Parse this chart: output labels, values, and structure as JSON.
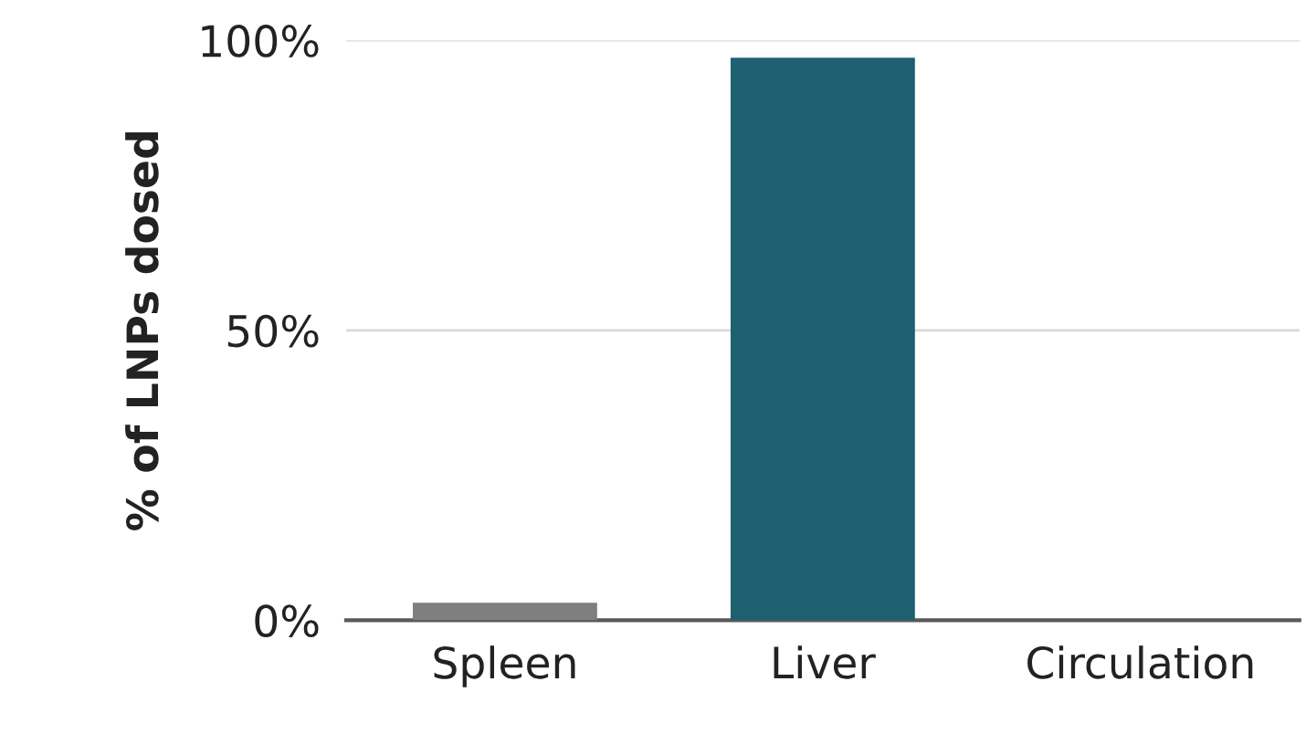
{
  "chart_data": {
    "type": "bar",
    "ylabel": "% of LNPs dosed",
    "categories": [
      "Spleen",
      "Liver",
      "Circulation"
    ],
    "values": [
      3,
      97,
      0
    ],
    "colors": [
      "#7f7f7f",
      "#1f6070",
      "#1f6070"
    ],
    "ylim": [
      0,
      100
    ],
    "yticks": [
      {
        "value": 0,
        "label": "0%"
      },
      {
        "value": 50,
        "label": "50%"
      },
      {
        "value": 100,
        "label": "100%"
      }
    ],
    "grid": "y",
    "legend": false
  }
}
